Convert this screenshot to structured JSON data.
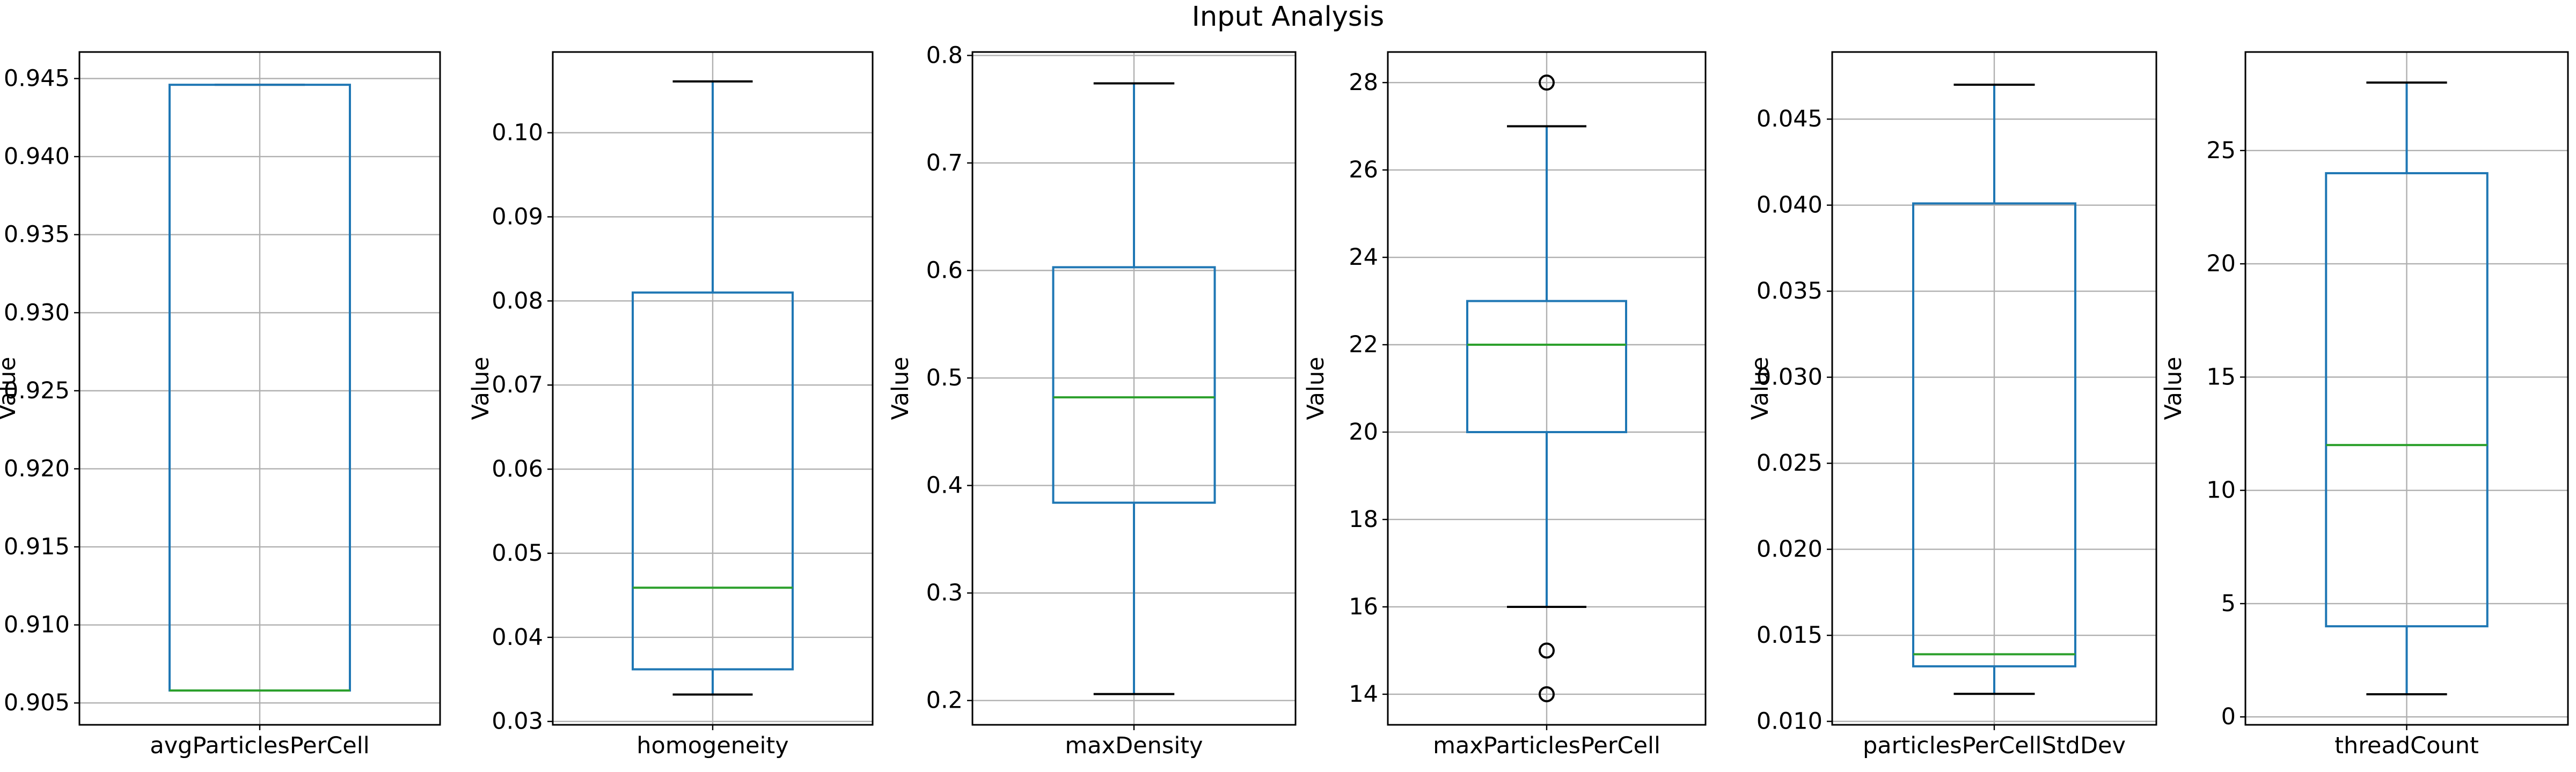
{
  "figure": {
    "title": "Input Analysis"
  },
  "colors": {
    "box": "#1f77b4",
    "median": "#2ca02c",
    "grid": "#b0b0b0",
    "axis": "#000000",
    "background": "#ffffff"
  },
  "chart_data": [
    {
      "type": "box",
      "xlabel": "avgParticlesPerCell",
      "ylabel": "Value",
      "ylim": [
        0.9036,
        0.9467
      ],
      "yticks": [
        0.905,
        0.91,
        0.915,
        0.92,
        0.925,
        0.93,
        0.935,
        0.94,
        0.945
      ],
      "ytick_labels": [
        "0.905",
        "0.910",
        "0.915",
        "0.920",
        "0.925",
        "0.930",
        "0.935",
        "0.940",
        "0.945"
      ],
      "whisker_low": 0.9058,
      "q1": 0.9058,
      "median": 0.9058,
      "q3": 0.9446,
      "whisker_high": 0.9446,
      "outliers": [],
      "grid": true
    },
    {
      "type": "box",
      "xlabel": "homogeneity",
      "ylabel": "Value",
      "ylim": [
        0.0296,
        0.1096
      ],
      "yticks": [
        0.03,
        0.04,
        0.05,
        0.06,
        0.07,
        0.08,
        0.09,
        0.1
      ],
      "ytick_labels": [
        "0.03",
        "0.04",
        "0.05",
        "0.06",
        "0.07",
        "0.08",
        "0.09",
        "0.10"
      ],
      "whisker_low": 0.0332,
      "q1": 0.0362,
      "median": 0.0459,
      "q3": 0.081,
      "whisker_high": 0.1061,
      "outliers": [],
      "grid": true
    },
    {
      "type": "box",
      "xlabel": "maxDensity",
      "ylabel": "Value",
      "ylim": [
        0.1774,
        0.8032
      ],
      "yticks": [
        0.2,
        0.3,
        0.4,
        0.5,
        0.6,
        0.7,
        0.8
      ],
      "ytick_labels": [
        "0.2",
        "0.3",
        "0.4",
        "0.5",
        "0.6",
        "0.7",
        "0.8"
      ],
      "whisker_low": 0.206,
      "q1": 0.384,
      "median": 0.482,
      "q3": 0.603,
      "whisker_high": 0.774,
      "outliers": [],
      "grid": true
    },
    {
      "type": "box",
      "xlabel": "maxParticlesPerCell",
      "ylabel": "Value",
      "ylim": [
        13.3,
        28.7
      ],
      "yticks": [
        14,
        16,
        18,
        20,
        22,
        24,
        26,
        28
      ],
      "ytick_labels": [
        "14",
        "16",
        "18",
        "20",
        "22",
        "24",
        "26",
        "28"
      ],
      "whisker_low": 16,
      "q1": 20,
      "median": 22,
      "q3": 23,
      "whisker_high": 27,
      "outliers": [
        28,
        15,
        14
      ],
      "grid": true
    },
    {
      "type": "box",
      "xlabel": "particlesPerCellStdDev",
      "ylabel": "Value",
      "ylim": [
        0.0098,
        0.0489
      ],
      "yticks": [
        0.01,
        0.015,
        0.02,
        0.025,
        0.03,
        0.035,
        0.04,
        0.045
      ],
      "ytick_labels": [
        "0.010",
        "0.015",
        "0.020",
        "0.025",
        "0.030",
        "0.035",
        "0.040",
        "0.045"
      ],
      "whisker_low": 0.0116,
      "q1": 0.0132,
      "median": 0.0139,
      "q3": 0.0401,
      "whisker_high": 0.047,
      "outliers": [],
      "grid": true
    },
    {
      "type": "box",
      "xlabel": "threadCount",
      "ylabel": "Value",
      "ylim": [
        -0.35,
        29.35
      ],
      "yticks": [
        0,
        5,
        10,
        15,
        20,
        25
      ],
      "ytick_labels": [
        "0",
        "5",
        "10",
        "15",
        "20",
        "25"
      ],
      "whisker_low": 1,
      "q1": 4,
      "median": 12,
      "q3": 24,
      "whisker_high": 28,
      "outliers": [],
      "grid": true
    }
  ]
}
